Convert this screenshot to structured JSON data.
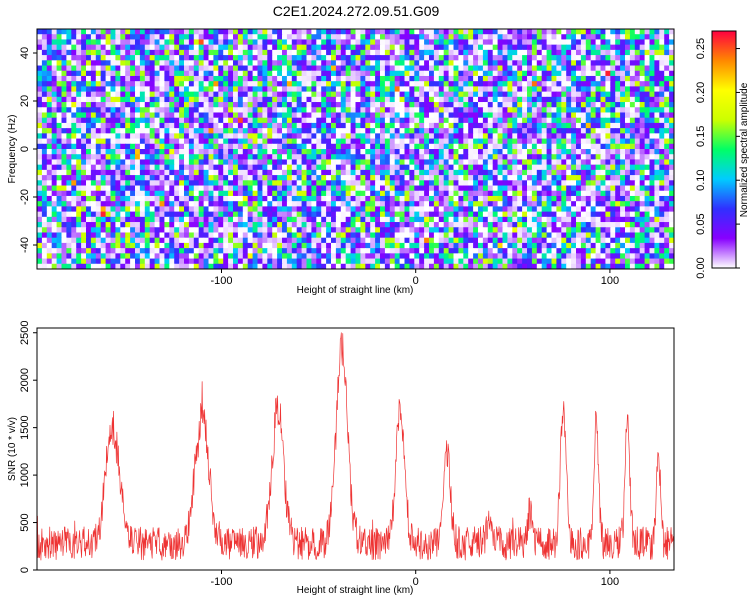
{
  "chart_data": [
    {
      "type": "heatmap",
      "title": "C2E1.2024.272.09.51.G09",
      "xlabel": "Height of straight line (km)",
      "ylabel": "Frequency (Hz)",
      "xlim": [
        -195,
        133
      ],
      "ylim": [
        -50,
        50
      ],
      "x_ticks": [
        -100,
        0,
        100
      ],
      "y_ticks": [
        -40,
        -20,
        0,
        20,
        40
      ],
      "colorbar": {
        "label": "Normalized spectral amplitude",
        "range": [
          0,
          0.27
        ],
        "ticks": [
          0.0,
          0.05,
          0.1,
          0.15,
          0.2,
          0.25
        ],
        "tick_labels": [
          "0.00",
          "0.05",
          "0.10",
          "0.15",
          "0.20",
          "0.25"
        ],
        "colormap": [
          "#ffffff",
          "#8800ff",
          "#3030ff",
          "#00ccff",
          "#00ff66",
          "#ccff00",
          "#ffff00",
          "#ff8800",
          "#ff0040"
        ]
      },
      "background_level": 0.04,
      "grid": false,
      "legend": "none"
    },
    {
      "type": "line",
      "title": "",
      "xlabel": "Height of straight line (km)",
      "ylabel": "SNR (10 * v/v)",
      "xlim": [
        -195,
        133
      ],
      "ylim": [
        0,
        2550
      ],
      "x_ticks": [
        -100,
        0,
        100
      ],
      "y_ticks": [
        0,
        500,
        1000,
        1500,
        2000,
        2500
      ],
      "series": [
        {
          "color": "#ee3333",
          "baseline": 280,
          "noise_amplitude": 220,
          "peaks": [
            {
              "x": -156,
              "y": 1600,
              "width": 3.5
            },
            {
              "x": -110,
              "y": 1750,
              "width": 3.5
            },
            {
              "x": -71,
              "y": 1800,
              "width": 3.0
            },
            {
              "x": -38,
              "y": 2500,
              "width": 3.0
            },
            {
              "x": -8,
              "y": 1800,
              "width": 2.2
            },
            {
              "x": 16,
              "y": 1400,
              "width": 1.8
            },
            {
              "x": 38,
              "y": 550,
              "width": 1.5
            },
            {
              "x": 59,
              "y": 650,
              "width": 1.2
            },
            {
              "x": 76,
              "y": 1900,
              "width": 1.4
            },
            {
              "x": 93,
              "y": 1650,
              "width": 1.2
            },
            {
              "x": 109,
              "y": 1720,
              "width": 1.2
            },
            {
              "x": 125,
              "y": 1300,
              "width": 1.0
            }
          ]
        }
      ],
      "grid": false,
      "legend": "none"
    }
  ]
}
